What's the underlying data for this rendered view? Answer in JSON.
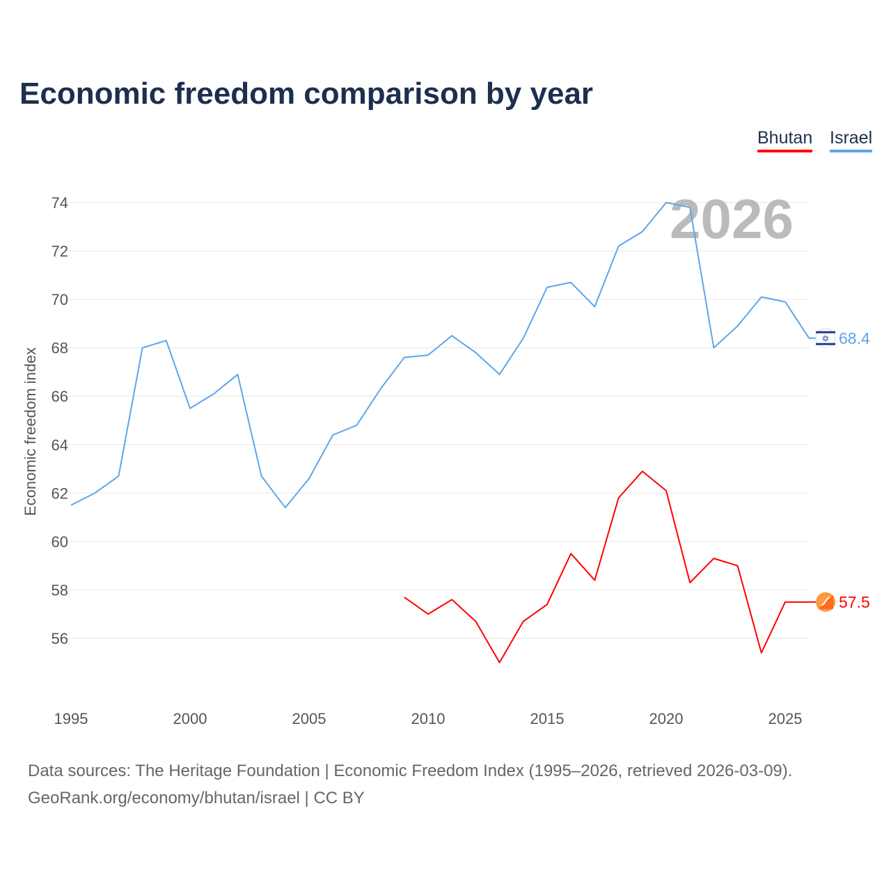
{
  "title": "Economic freedom comparison by year",
  "legend": [
    {
      "label": "Bhutan",
      "color": "#ff0000"
    },
    {
      "label": "Israel",
      "color": "#5da5ea"
    }
  ],
  "source_line1": "Data sources: The Heritage Foundation | Economic Freedom Index (1995–2026, retrieved 2026-03-09).",
  "source_line2": "GeoRank.org/economy/bhutan/israel | CC BY",
  "chart_data": {
    "type": "line",
    "title": "Economic freedom comparison by year",
    "xlabel": "",
    "ylabel": "Economic freedom index",
    "xlim": [
      1995,
      2026
    ],
    "ylim": [
      54,
      75
    ],
    "xticks": [
      1995,
      2000,
      2005,
      2010,
      2015,
      2020,
      2025
    ],
    "yticks": [
      56,
      58,
      60,
      62,
      64,
      66,
      68,
      70,
      72,
      74
    ],
    "grid": true,
    "legend_position": "top-right",
    "annotation_year": "2026",
    "series": [
      {
        "name": "Israel",
        "color": "#5da5ea",
        "end_label": "68.4",
        "flag_icon": "israel-flag-icon",
        "x": [
          1995,
          1996,
          1997,
          1998,
          1999,
          2000,
          2001,
          2002,
          2003,
          2004,
          2005,
          2006,
          2007,
          2008,
          2009,
          2010,
          2011,
          2012,
          2013,
          2014,
          2015,
          2016,
          2017,
          2018,
          2019,
          2020,
          2021,
          2022,
          2023,
          2024,
          2025,
          2026
        ],
        "values": [
          61.5,
          62.0,
          62.7,
          68.0,
          68.3,
          65.5,
          66.1,
          66.9,
          62.7,
          61.4,
          62.6,
          64.4,
          64.8,
          66.3,
          67.6,
          67.7,
          68.5,
          67.8,
          66.9,
          68.4,
          70.5,
          70.7,
          69.7,
          72.2,
          72.8,
          74.0,
          73.8,
          68.0,
          68.9,
          70.1,
          69.9,
          68.4
        ]
      },
      {
        "name": "Bhutan",
        "color": "#ff0000",
        "end_label": "57.5",
        "flag_icon": "bhutan-flag-icon",
        "x": [
          2009,
          2010,
          2011,
          2012,
          2013,
          2014,
          2015,
          2016,
          2017,
          2018,
          2019,
          2020,
          2021,
          2022,
          2023,
          2024,
          2025,
          2026
        ],
        "values": [
          57.7,
          57.0,
          57.6,
          56.7,
          55.0,
          56.7,
          57.4,
          59.5,
          58.4,
          61.8,
          62.9,
          62.1,
          58.3,
          59.3,
          59.0,
          55.4,
          57.5,
          57.5
        ]
      }
    ]
  }
}
